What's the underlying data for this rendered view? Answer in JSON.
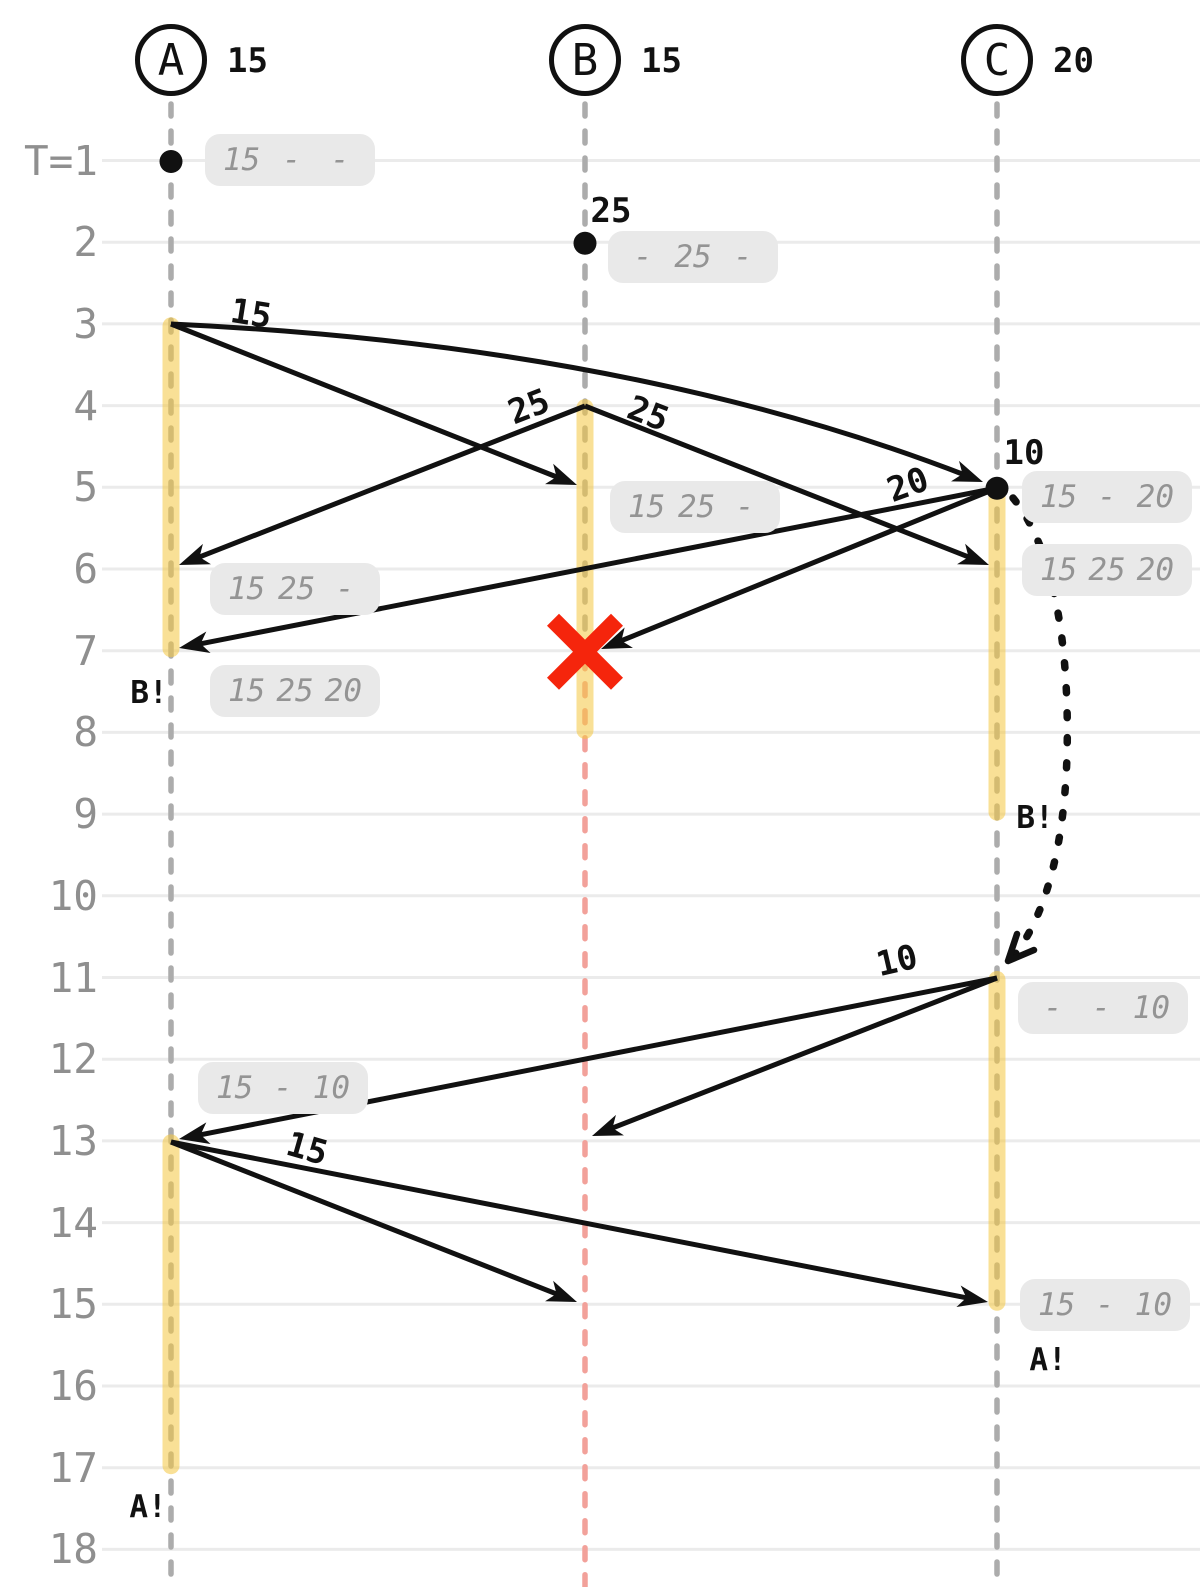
{
  "diagram": {
    "kind": "gossip-replication-timeline",
    "nodes": [
      {
        "id": "A",
        "label": "A",
        "top_value": "15"
      },
      {
        "id": "B",
        "label": "B",
        "top_value": "15"
      },
      {
        "id": "C",
        "label": "C",
        "top_value": "20"
      }
    ],
    "time_ticks": [
      "T=1",
      "2",
      "3",
      "4",
      "5",
      "6",
      "7",
      "8",
      "9",
      "10",
      "11",
      "12",
      "13",
      "14",
      "15",
      "16",
      "17",
      "18"
    ],
    "value_arrivals": [
      {
        "node": "A",
        "t": 1,
        "label": ""
      },
      {
        "node": "B",
        "t": 2,
        "label": "25"
      },
      {
        "node": "C",
        "t": 5,
        "label": "10"
      }
    ],
    "messages": [
      {
        "from": "A",
        "send_t": 3,
        "to": "B",
        "recv_t": 5,
        "value": "15"
      },
      {
        "from": "A",
        "send_t": 3,
        "to": "C",
        "recv_t": 5,
        "value": "15"
      },
      {
        "from": "B",
        "send_t": 4,
        "to": "A",
        "recv_t": 6,
        "value": "25"
      },
      {
        "from": "B",
        "send_t": 4,
        "to": "C",
        "recv_t": 6,
        "value": "25"
      },
      {
        "from": "C",
        "send_t": 5,
        "to": "A",
        "recv_t": 7,
        "value": "20"
      },
      {
        "from": "C",
        "send_t": 5,
        "to": "B",
        "recv_t": 7,
        "value": "20"
      },
      {
        "from": "C",
        "send_t": 11,
        "to": "A",
        "recv_t": 13,
        "value": "10"
      },
      {
        "from": "C",
        "send_t": 11,
        "to": "B",
        "recv_t": 13,
        "value": "10"
      },
      {
        "from": "A",
        "send_t": 13,
        "to": "B",
        "recv_t": 15,
        "value": "15"
      },
      {
        "from": "A",
        "send_t": 13,
        "to": "C",
        "recv_t": 15,
        "value": "15"
      }
    ],
    "message_labels": [
      {
        "text": "15"
      },
      {
        "text": "25"
      },
      {
        "text": "25"
      },
      {
        "text": "20"
      },
      {
        "text": "10"
      },
      {
        "text": "15"
      }
    ],
    "state_boxes": [
      {
        "node": "A",
        "t": 1,
        "slots": [
          "15",
          "-",
          "-"
        ]
      },
      {
        "node": "B",
        "t": 2,
        "slots": [
          "-",
          "25",
          "-"
        ]
      },
      {
        "node": "B",
        "t": 5,
        "slots": [
          "15",
          "25",
          "-"
        ]
      },
      {
        "node": "C",
        "t": 5,
        "slots": [
          "15",
          "-",
          "20"
        ]
      },
      {
        "node": "A",
        "t": 6,
        "slots": [
          "15",
          "25",
          "-"
        ]
      },
      {
        "node": "C",
        "t": 6,
        "slots": [
          "15",
          "25",
          "20"
        ]
      },
      {
        "node": "A",
        "t": 7,
        "slots": [
          "15",
          "25",
          "20"
        ]
      },
      {
        "node": "C",
        "t": 11,
        "slots": [
          "-",
          "-",
          "10"
        ]
      },
      {
        "node": "A",
        "t": 12,
        "slots": [
          "15",
          "-",
          "10"
        ]
      },
      {
        "node": "C",
        "t": 15,
        "slots": [
          "15",
          "-",
          "10"
        ]
      }
    ],
    "failure_alerts": [
      {
        "node": "A",
        "t": 7,
        "text": "B!"
      },
      {
        "node": "C",
        "t": 9,
        "text": "B!"
      },
      {
        "node": "C",
        "t": 15,
        "text": "A!"
      },
      {
        "node": "A",
        "t": 17,
        "text": "A!"
      }
    ],
    "active_periods": [
      {
        "node": "A",
        "from_t": 3,
        "to_t": 7
      },
      {
        "node": "B",
        "from_t": 4,
        "to_t": 8
      },
      {
        "node": "C",
        "from_t": 5,
        "to_t": 9
      },
      {
        "node": "C",
        "from_t": 11,
        "to_t": 15
      },
      {
        "node": "A",
        "from_t": 13,
        "to_t": 17
      }
    ],
    "crash_marker": {
      "node": "B",
      "t": 7
    },
    "dead_lifeline": {
      "node": "B",
      "from_t": 7
    },
    "restart_arrow": {
      "node": "C",
      "from_t": 5,
      "to_t": 11
    },
    "colors": {
      "ink": "#111111",
      "highlight_yellow": "#f5c842",
      "crash_red": "#f5250c",
      "dead_lifeline_pink": "#f2a19a",
      "lifeline_gray": "#acacac",
      "gridline_gray": "#ebebeb",
      "box_bg": "#e9e9e9",
      "box_text": "#949494",
      "tick_text": "#8f8f8f"
    }
  }
}
